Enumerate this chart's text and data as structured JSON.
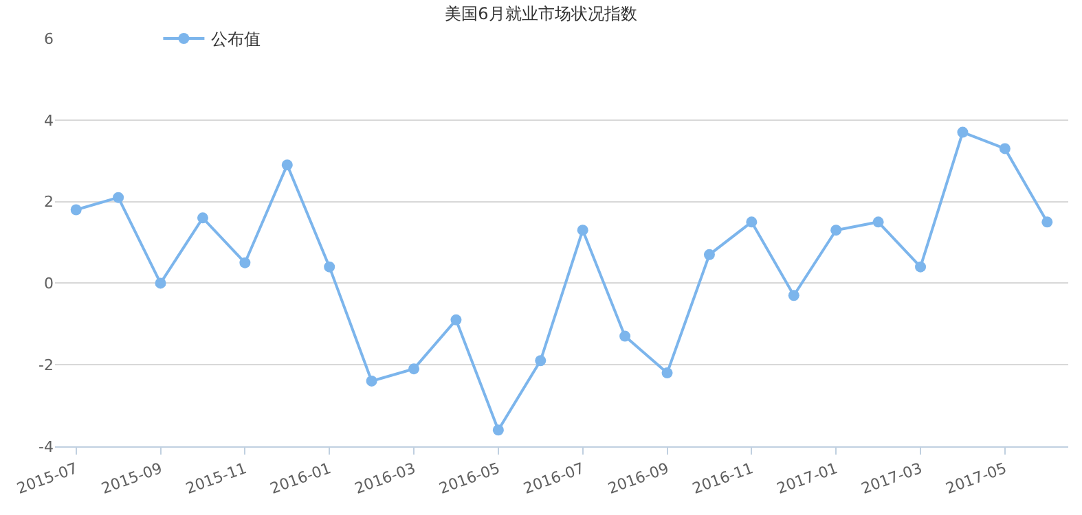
{
  "chart_data": {
    "type": "line",
    "title": "美国6月就业市场状况指数",
    "categories": [
      "2015-07",
      null,
      "2015-09",
      null,
      "2015-11",
      null,
      "2016-01",
      null,
      "2016-03",
      null,
      "2016-05",
      null,
      "2016-07",
      null,
      "2016-09",
      null,
      "2016-11",
      null,
      "2017-01",
      null,
      "2017-03",
      null,
      "2017-05",
      null
    ],
    "series": [
      {
        "name": "公布值",
        "color": "#7cb5ec",
        "values": [
          1.8,
          2.1,
          0.0,
          1.6,
          0.5,
          2.9,
          0.4,
          -2.4,
          -2.1,
          -0.9,
          -3.6,
          -1.9,
          1.3,
          -1.3,
          -2.2,
          0.7,
          1.5,
          -0.3,
          1.3,
          1.5,
          0.4,
          3.7,
          3.3,
          1.5
        ]
      }
    ],
    "ylim": [
      -4,
      6
    ],
    "yticks": [
      -4,
      -2,
      0,
      2,
      4,
      6
    ],
    "grid": "y",
    "legend": "top left",
    "marker": "circle",
    "line_style": "solid"
  }
}
